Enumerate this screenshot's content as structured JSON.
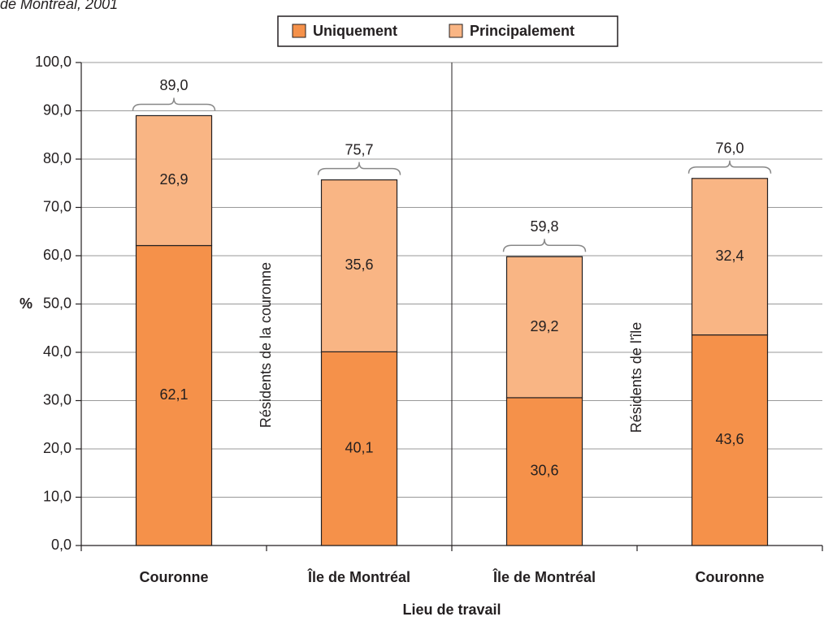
{
  "chart_data": {
    "type": "stacked_bar",
    "title": "de Montréal, 2001",
    "categories": [
      "Couronne",
      "Île de Montréal",
      "Île de Montréal",
      "Couronne"
    ],
    "group_labels": [
      "Résidents de la couronne",
      "Résidents de l'île"
    ],
    "series": [
      {
        "name": "Uniquement",
        "color": "#f5914a",
        "values": [
          62.1,
          40.1,
          30.6,
          43.6
        ],
        "value_labels": [
          "62,1",
          "40,1",
          "30,6",
          "43,6"
        ]
      },
      {
        "name": "Principalement",
        "color": "#f9b584",
        "values": [
          26.9,
          35.6,
          29.2,
          32.4
        ],
        "value_labels": [
          "26,9",
          "35,6",
          "29,2",
          "32,4"
        ]
      }
    ],
    "totals": [
      89.0,
      75.7,
      59.8,
      76.0
    ],
    "total_labels": [
      "89,0",
      "75,7",
      "59,8",
      "76,0"
    ],
    "ylabel": "%",
    "xlabel": "Lieu de travail",
    "ylim": [
      0,
      100
    ],
    "yticks": [
      {
        "value": 0,
        "label": "0,0"
      },
      {
        "value": 10,
        "label": "10,0"
      },
      {
        "value": 20,
        "label": "20,0"
      },
      {
        "value": 30,
        "label": "30,0"
      },
      {
        "value": 40,
        "label": "40,0"
      },
      {
        "value": 50,
        "label": "50,0"
      },
      {
        "value": 60,
        "label": "60,0"
      },
      {
        "value": 70,
        "label": "70,0"
      },
      {
        "value": 80,
        "label": "80,0"
      },
      {
        "value": 90,
        "label": "90,0"
      },
      {
        "value": 100,
        "label": "100,0"
      }
    ],
    "grid": true,
    "legend": "top"
  }
}
